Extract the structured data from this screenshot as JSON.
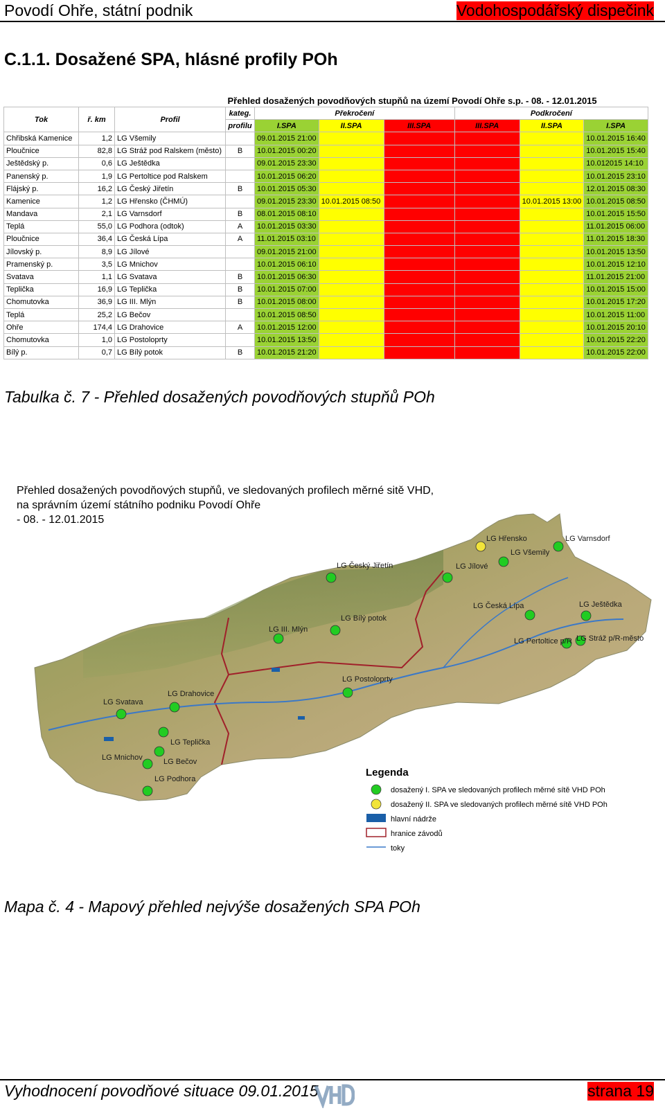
{
  "header": {
    "left": "Povodí Ohře, státní podnik",
    "right": "Vodohospodářský dispečink"
  },
  "section_title": "C.1.1. Dosažené SPA, hlásné profily POh",
  "table": {
    "title": "Přehled dosažených povodňových stupňů na území Povodí Ohře s.p.  -  08. - 12.01.2015",
    "headers": {
      "tok": "Tok",
      "rkm": "ř. km",
      "profil": "Profil",
      "kateg1": "kateg.",
      "kateg2": "profilu",
      "prekroceni": "Překročení",
      "podkroceni": "Podkročení",
      "spa1": "I.SPA",
      "spa2": "II.SPA",
      "spa3": "III.SPA",
      "spa3b": "III.SPA",
      "spa2b": "II.SPA",
      "spa1b": "I.SPA"
    },
    "rows": [
      [
        "Chřibská Kamenice",
        "1,2",
        "LG Všemily",
        "",
        "09.01.2015 21:00",
        "",
        "",
        "",
        "",
        "10.01.2015 16:40"
      ],
      [
        "Ploučnice",
        "82,8",
        "LG Stráž pod Ralskem (město)",
        "B",
        "10.01.2015 00:20",
        "",
        "",
        "",
        "",
        "10.01.2015 15:40"
      ],
      [
        "Ještědský p.",
        "0,6",
        "LG Ještědka",
        "",
        "09.01.2015 23:30",
        "",
        "",
        "",
        "",
        "10.012015 14:10"
      ],
      [
        "Panenský p.",
        "1,9",
        "LG Pertoltice pod Ralskem",
        "",
        "10.01.2015 06:20",
        "",
        "",
        "",
        "",
        "10.01.2015 23:10"
      ],
      [
        "Flájský p.",
        "16,2",
        "LG Český Jiřetín",
        "B",
        "10.01.2015 05:30",
        "",
        "",
        "",
        "",
        "12.01.2015 08:30"
      ],
      [
        "Kamenice",
        "1,2",
        "LG Hřensko (ČHMÚ)",
        "",
        "09.01.2015 23:30",
        "10.01.2015 08:50",
        "",
        "",
        "10.01.2015 13:00",
        "10.01.2015 08:50"
      ],
      [
        "Mandava",
        "2,1",
        "LG Varnsdorf",
        "B",
        "08.01.2015 08:10",
        "",
        "",
        "",
        "",
        "10.01.2015 15:50"
      ],
      [
        "Teplá",
        "55,0",
        "LG Podhora (odtok)",
        "A",
        "10.01.2015 03:30",
        "",
        "",
        "",
        "",
        "11.01.2015 06:00"
      ],
      [
        "Ploučnice",
        "36,4",
        "LG Česká Lípa",
        "A",
        "11.01.2015 03:10",
        "",
        "",
        "",
        "",
        "11.01.2015 18:30"
      ],
      [
        "Jílovský p.",
        "8,9",
        "LG Jílové",
        "",
        "09.01.2015 21:00",
        "",
        "",
        "",
        "",
        "10.01.2015 13:50"
      ],
      [
        "Pramenský p.",
        "3,5",
        "LG Mnichov",
        "",
        "10.01.2015 06:10",
        "",
        "",
        "",
        "",
        "10.01.2015 12:10"
      ],
      [
        "Svatava",
        "1,1",
        "LG Svatava",
        "B",
        "10.01.2015 06:30",
        "",
        "",
        "",
        "",
        "11.01.2015 21:00"
      ],
      [
        "Teplička",
        "16,9",
        "LG Teplička",
        "B",
        "10.01.2015 07:00",
        "",
        "",
        "",
        "",
        "10.01.2015 15:00"
      ],
      [
        "Chomutovka",
        "36,9",
        "LG III. Mlýn",
        "B",
        "10.01.2015 08:00",
        "",
        "",
        "",
        "",
        "10.01.2015 17:20"
      ],
      [
        "Teplá",
        "25,2",
        "LG Bečov",
        "",
        "10.01.2015 08:50",
        "",
        "",
        "",
        "",
        "10.01.2015 11:00"
      ],
      [
        "Ohře",
        "174,4",
        "LG Drahovice",
        "A",
        "10.01.2015 12:00",
        "",
        "",
        "",
        "",
        "10.01.2015 20:10"
      ],
      [
        "Chomutovka",
        "1,0",
        "LG Postoloprty",
        "",
        "10.01.2015 13:50",
        "",
        "",
        "",
        "",
        "10.01.2015 22:20"
      ],
      [
        "Bílý p.",
        "0,7",
        "LG Bílý potok",
        "B",
        "10.01.2015 21:20",
        "",
        "",
        "",
        "",
        "10.01.2015 22:00"
      ]
    ]
  },
  "table_caption": "Tabulka č. 7 - Přehled dosažených povodňových stupňů POh",
  "map_description": {
    "line1": "Přehled dosažených povodňových stupňů, ve sledovaných profilech měrné sitě VHD,",
    "line2": "na správním území státního podniku Povodí Ohře",
    "line3": " - 08. - 12.01.2015"
  },
  "map": {
    "stations": [
      {
        "label": "LG Varnsdorf",
        "level": "I"
      },
      {
        "label": "LG Hřensko",
        "level": "II"
      },
      {
        "label": "LG Všemily",
        "level": "I"
      },
      {
        "label": "LG Český Jiřetín",
        "level": "I"
      },
      {
        "label": "LG Jílové",
        "level": "I"
      },
      {
        "label": "LG Česká Lípa",
        "level": "I"
      },
      {
        "label": "LG Ještědka",
        "level": "I"
      },
      {
        "label": "LG Pertoltice p/R",
        "level": "I"
      },
      {
        "label": "LG Stráž p/R-město",
        "level": "I"
      },
      {
        "label": "LG Bílý potok",
        "level": "I"
      },
      {
        "label": "LG III. Mlýn",
        "level": "I"
      },
      {
        "label": "LG Postoloprty",
        "level": "I"
      },
      {
        "label": "LG Svatava",
        "level": "I"
      },
      {
        "label": "LG Drahovice",
        "level": "I"
      },
      {
        "label": "LG Teplička",
        "level": "I"
      },
      {
        "label": "LG Mnichov",
        "level": "I"
      },
      {
        "label": "LG Bečov",
        "level": "I"
      },
      {
        "label": "LG Podhora",
        "level": "I"
      }
    ],
    "legend": {
      "title": "Legenda",
      "items": [
        "dosažený I. SPA ve sledovaných profilech měrné sítě VHD POh",
        "dosažený II. SPA ve sledovaných profilech měrné sítě VHD POh",
        "hlavní nádrže",
        "hranice závodů",
        "toky"
      ]
    },
    "colors": {
      "spa1": "#22cc22",
      "spa2": "#f2e43a",
      "reservoir": "#1a5fa8",
      "border": "#a0202a",
      "river": "#3a78c8"
    }
  },
  "map_caption": "Mapa č. 4 - Mapový přehled nejvýše dosažených SPA POh",
  "footer": {
    "left": "Vyhodnocení povodňové situace 09.01.2015",
    "right": "strana 19"
  }
}
